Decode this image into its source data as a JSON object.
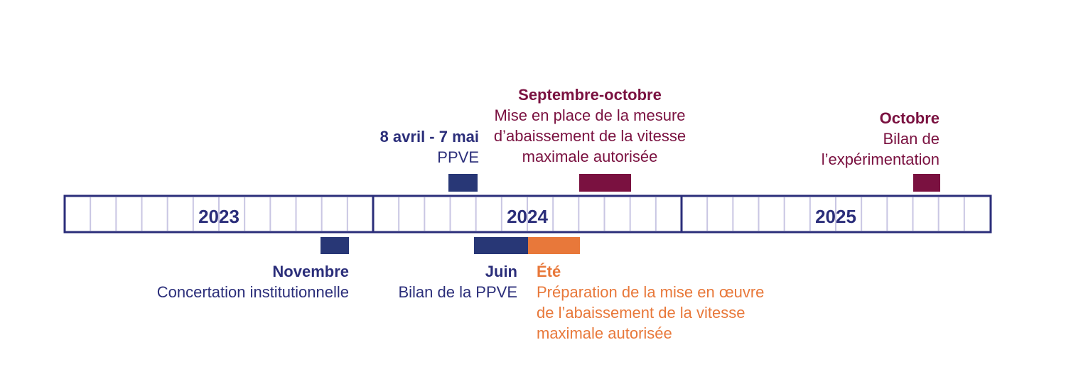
{
  "colors": {
    "navy": "#2b2e7a",
    "navy_bar": "#283776",
    "maroon": "#7a1140",
    "orange": "#e8783a",
    "grid": "#c9c6e3"
  },
  "years": [
    {
      "label": "2023"
    },
    {
      "label": "2024"
    },
    {
      "label": "2025"
    }
  ],
  "events": {
    "ppve": {
      "date": "8 avril - 7 mai",
      "description": "PPVE",
      "color": "navy"
    },
    "septembre": {
      "date": "Septembre-octobre",
      "description": "Mise en place de la mesure\nd’abaissement de la vitesse\nmaximale autorisée",
      "color": "maroon"
    },
    "octobre": {
      "date": "Octobre",
      "description": "Bilan de\nl’expérimentation",
      "color": "maroon"
    },
    "novembre": {
      "date": "Novembre",
      "description": "Concertation institutionnelle",
      "color": "navy"
    },
    "juin": {
      "date": "Juin",
      "description": "Bilan de la PPVE",
      "color": "navy"
    },
    "ete": {
      "date": "Été",
      "description": "Préparation de la mise en œuvre\nde l’abaissement de la vitesse\nmaximale autorisée",
      "color": "orange"
    }
  }
}
